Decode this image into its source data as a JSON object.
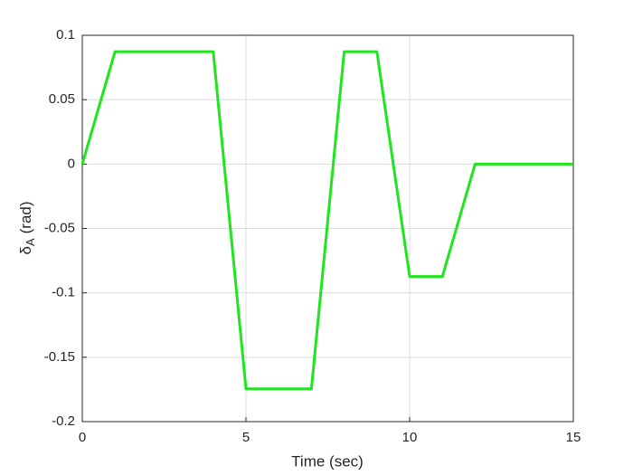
{
  "chart_data": {
    "type": "line",
    "xlabel": "Time (sec)",
    "ylabel": {
      "symbol": "δ",
      "subscript": "A",
      "unit": "(rad)"
    },
    "x": [
      0,
      1,
      4,
      5,
      7,
      8,
      9,
      10,
      11,
      12,
      15
    ],
    "series": [
      {
        "color": "#1ee61e",
        "values": [
          0,
          0.0873,
          0.0873,
          -0.1745,
          -0.1745,
          0.0873,
          0.0873,
          -0.0873,
          -0.0873,
          0,
          0
        ]
      }
    ],
    "xlim": [
      0,
      15
    ],
    "xticks": [
      0,
      5,
      10,
      15
    ],
    "ylim": [
      -0.2,
      0.1
    ],
    "yticks": [
      -0.2,
      -0.15,
      -0.1,
      -0.05,
      0,
      0.05,
      0.1
    ],
    "grid": true
  }
}
